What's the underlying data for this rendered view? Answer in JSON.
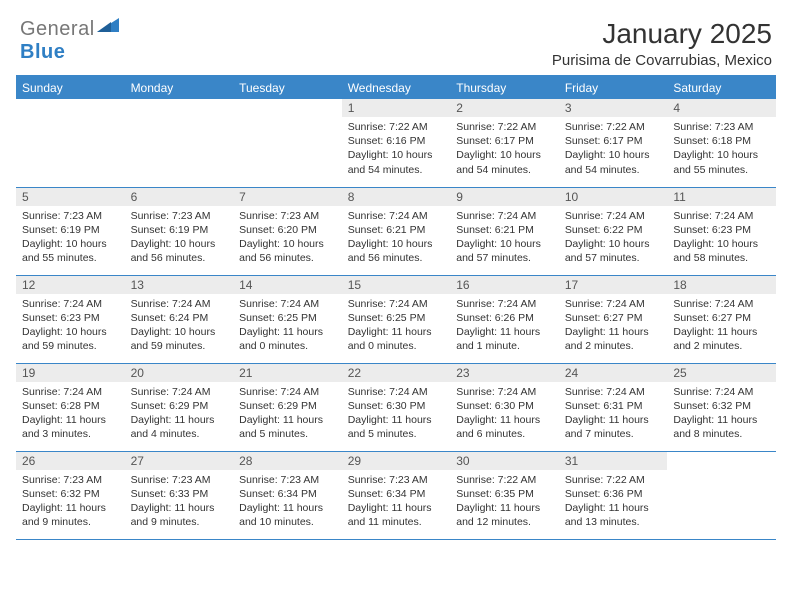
{
  "logo": {
    "textGray": "General",
    "textBlue": "Blue"
  },
  "title": "January 2025",
  "subtitle": "Purisima de Covarrubias, Mexico",
  "colors": {
    "headerBlue": "#3a86c8",
    "daynumBg": "#ececec",
    "textDark": "#333333",
    "logoGray": "#777777",
    "logoBlue": "#2f7fc4"
  },
  "dayHeaders": [
    "Sunday",
    "Monday",
    "Tuesday",
    "Wednesday",
    "Thursday",
    "Friday",
    "Saturday"
  ],
  "weeks": [
    [
      {
        "num": "",
        "sunrise": "",
        "sunset": "",
        "daylight": ""
      },
      {
        "num": "",
        "sunrise": "",
        "sunset": "",
        "daylight": ""
      },
      {
        "num": "",
        "sunrise": "",
        "sunset": "",
        "daylight": ""
      },
      {
        "num": "1",
        "sunrise": "Sunrise: 7:22 AM",
        "sunset": "Sunset: 6:16 PM",
        "daylight": "Daylight: 10 hours and 54 minutes."
      },
      {
        "num": "2",
        "sunrise": "Sunrise: 7:22 AM",
        "sunset": "Sunset: 6:17 PM",
        "daylight": "Daylight: 10 hours and 54 minutes."
      },
      {
        "num": "3",
        "sunrise": "Sunrise: 7:22 AM",
        "sunset": "Sunset: 6:17 PM",
        "daylight": "Daylight: 10 hours and 54 minutes."
      },
      {
        "num": "4",
        "sunrise": "Sunrise: 7:23 AM",
        "sunset": "Sunset: 6:18 PM",
        "daylight": "Daylight: 10 hours and 55 minutes."
      }
    ],
    [
      {
        "num": "5",
        "sunrise": "Sunrise: 7:23 AM",
        "sunset": "Sunset: 6:19 PM",
        "daylight": "Daylight: 10 hours and 55 minutes."
      },
      {
        "num": "6",
        "sunrise": "Sunrise: 7:23 AM",
        "sunset": "Sunset: 6:19 PM",
        "daylight": "Daylight: 10 hours and 56 minutes."
      },
      {
        "num": "7",
        "sunrise": "Sunrise: 7:23 AM",
        "sunset": "Sunset: 6:20 PM",
        "daylight": "Daylight: 10 hours and 56 minutes."
      },
      {
        "num": "8",
        "sunrise": "Sunrise: 7:24 AM",
        "sunset": "Sunset: 6:21 PM",
        "daylight": "Daylight: 10 hours and 56 minutes."
      },
      {
        "num": "9",
        "sunrise": "Sunrise: 7:24 AM",
        "sunset": "Sunset: 6:21 PM",
        "daylight": "Daylight: 10 hours and 57 minutes."
      },
      {
        "num": "10",
        "sunrise": "Sunrise: 7:24 AM",
        "sunset": "Sunset: 6:22 PM",
        "daylight": "Daylight: 10 hours and 57 minutes."
      },
      {
        "num": "11",
        "sunrise": "Sunrise: 7:24 AM",
        "sunset": "Sunset: 6:23 PM",
        "daylight": "Daylight: 10 hours and 58 minutes."
      }
    ],
    [
      {
        "num": "12",
        "sunrise": "Sunrise: 7:24 AM",
        "sunset": "Sunset: 6:23 PM",
        "daylight": "Daylight: 10 hours and 59 minutes."
      },
      {
        "num": "13",
        "sunrise": "Sunrise: 7:24 AM",
        "sunset": "Sunset: 6:24 PM",
        "daylight": "Daylight: 10 hours and 59 minutes."
      },
      {
        "num": "14",
        "sunrise": "Sunrise: 7:24 AM",
        "sunset": "Sunset: 6:25 PM",
        "daylight": "Daylight: 11 hours and 0 minutes."
      },
      {
        "num": "15",
        "sunrise": "Sunrise: 7:24 AM",
        "sunset": "Sunset: 6:25 PM",
        "daylight": "Daylight: 11 hours and 0 minutes."
      },
      {
        "num": "16",
        "sunrise": "Sunrise: 7:24 AM",
        "sunset": "Sunset: 6:26 PM",
        "daylight": "Daylight: 11 hours and 1 minute."
      },
      {
        "num": "17",
        "sunrise": "Sunrise: 7:24 AM",
        "sunset": "Sunset: 6:27 PM",
        "daylight": "Daylight: 11 hours and 2 minutes."
      },
      {
        "num": "18",
        "sunrise": "Sunrise: 7:24 AM",
        "sunset": "Sunset: 6:27 PM",
        "daylight": "Daylight: 11 hours and 2 minutes."
      }
    ],
    [
      {
        "num": "19",
        "sunrise": "Sunrise: 7:24 AM",
        "sunset": "Sunset: 6:28 PM",
        "daylight": "Daylight: 11 hours and 3 minutes."
      },
      {
        "num": "20",
        "sunrise": "Sunrise: 7:24 AM",
        "sunset": "Sunset: 6:29 PM",
        "daylight": "Daylight: 11 hours and 4 minutes."
      },
      {
        "num": "21",
        "sunrise": "Sunrise: 7:24 AM",
        "sunset": "Sunset: 6:29 PM",
        "daylight": "Daylight: 11 hours and 5 minutes."
      },
      {
        "num": "22",
        "sunrise": "Sunrise: 7:24 AM",
        "sunset": "Sunset: 6:30 PM",
        "daylight": "Daylight: 11 hours and 5 minutes."
      },
      {
        "num": "23",
        "sunrise": "Sunrise: 7:24 AM",
        "sunset": "Sunset: 6:30 PM",
        "daylight": "Daylight: 11 hours and 6 minutes."
      },
      {
        "num": "24",
        "sunrise": "Sunrise: 7:24 AM",
        "sunset": "Sunset: 6:31 PM",
        "daylight": "Daylight: 11 hours and 7 minutes."
      },
      {
        "num": "25",
        "sunrise": "Sunrise: 7:24 AM",
        "sunset": "Sunset: 6:32 PM",
        "daylight": "Daylight: 11 hours and 8 minutes."
      }
    ],
    [
      {
        "num": "26",
        "sunrise": "Sunrise: 7:23 AM",
        "sunset": "Sunset: 6:32 PM",
        "daylight": "Daylight: 11 hours and 9 minutes."
      },
      {
        "num": "27",
        "sunrise": "Sunrise: 7:23 AM",
        "sunset": "Sunset: 6:33 PM",
        "daylight": "Daylight: 11 hours and 9 minutes."
      },
      {
        "num": "28",
        "sunrise": "Sunrise: 7:23 AM",
        "sunset": "Sunset: 6:34 PM",
        "daylight": "Daylight: 11 hours and 10 minutes."
      },
      {
        "num": "29",
        "sunrise": "Sunrise: 7:23 AM",
        "sunset": "Sunset: 6:34 PM",
        "daylight": "Daylight: 11 hours and 11 minutes."
      },
      {
        "num": "30",
        "sunrise": "Sunrise: 7:22 AM",
        "sunset": "Sunset: 6:35 PM",
        "daylight": "Daylight: 11 hours and 12 minutes."
      },
      {
        "num": "31",
        "sunrise": "Sunrise: 7:22 AM",
        "sunset": "Sunset: 6:36 PM",
        "daylight": "Daylight: 11 hours and 13 minutes."
      },
      {
        "num": "",
        "sunrise": "",
        "sunset": "",
        "daylight": ""
      }
    ]
  ]
}
